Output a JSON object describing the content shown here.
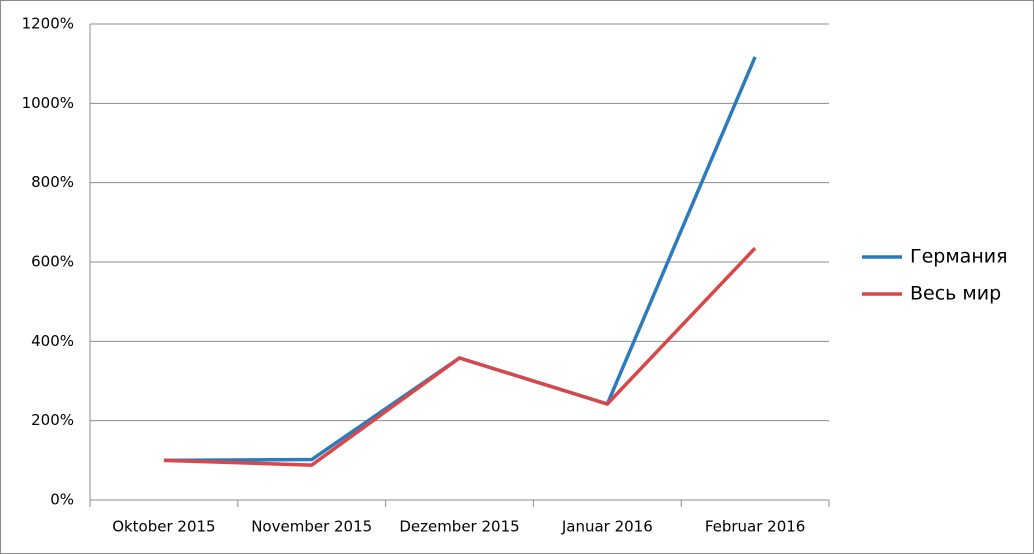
{
  "chart_data": {
    "type": "line",
    "categories": [
      "Oktober 2015",
      "November 2015",
      "Dezember 2015",
      "Januar 2016",
      "Februar 2016"
    ],
    "series": [
      {
        "name": "Германия",
        "color": "#2b7bbd",
        "values": [
          100,
          102,
          358,
          242,
          1117
        ]
      },
      {
        "name": "Весь мир",
        "color": "#d8474a",
        "values": [
          100,
          88,
          358,
          242,
          635
        ]
      }
    ],
    "ylim": [
      0,
      1200
    ],
    "yticks": [
      {
        "value": 0,
        "label": "0%"
      },
      {
        "value": 200,
        "label": "200%"
      },
      {
        "value": 400,
        "label": "400%"
      },
      {
        "value": 600,
        "label": "600%"
      },
      {
        "value": 800,
        "label": "800%"
      },
      {
        "value": 1000,
        "label": "1000%"
      },
      {
        "value": 1200,
        "label": "1200%"
      }
    ],
    "grid": true,
    "legend": "right"
  }
}
